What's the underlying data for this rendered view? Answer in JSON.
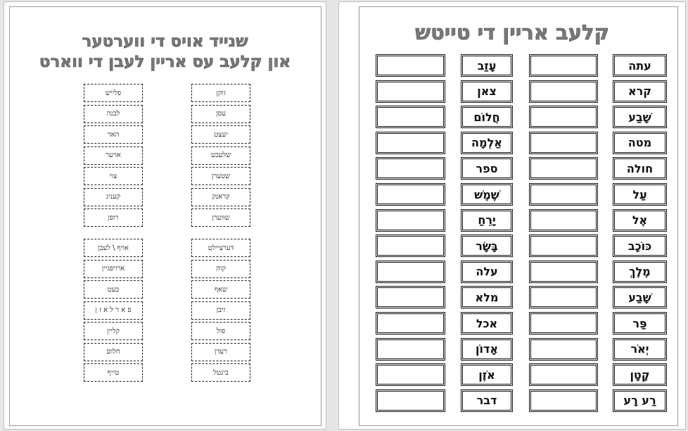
{
  "left_page": {
    "title_line1": "שנייד אויס די ווערטער",
    "title_line2": "און קלעב עס אריין לעבן די ווארט",
    "group1": {
      "right_column": [
        "זוקן",
        "עסן",
        "יעצט",
        "שלעכט",
        "שטערן",
        "קראנק",
        "שווערן"
      ],
      "left_column": [
        "פלייש",
        "לבנה",
        "האר",
        "אויער",
        "צוי",
        "קעניג",
        "רופן"
      ]
    },
    "group2": {
      "right_column": [
        "דערציילט",
        "קוה",
        "שאף",
        "זיבן",
        "פול",
        "רעדן",
        "בינטל"
      ],
      "left_column": [
        "אויף \\ לעבן",
        "ארויפגיין",
        "בעט",
        "פ א ר ל א ז ן",
        "קליין",
        "חלום",
        "טייף"
      ]
    }
  },
  "right_page": {
    "title": "קלעב אריין די טייטש",
    "column1_words": [
      "עתה",
      "קרא",
      "שָׁבַע",
      "מטה",
      "חולה",
      "עַל",
      "אֶל",
      "כּוֹכָב",
      "מֶלֶךְ",
      "שָׁבַע",
      "פַּר",
      "יְאֹר",
      "קָטָן",
      "רַע רָע"
    ],
    "column2_words": [
      "עָזַב",
      "צאן",
      "חֲלוֹם",
      "אַלְמָה",
      "ספר",
      "שֶׁמֶשׁ",
      "יָרֵחַ",
      "בָּשָׂר",
      "עלה",
      "מלא",
      "אכל",
      "אָדוֹן",
      "אֹזֶן",
      "דבר"
    ]
  }
}
